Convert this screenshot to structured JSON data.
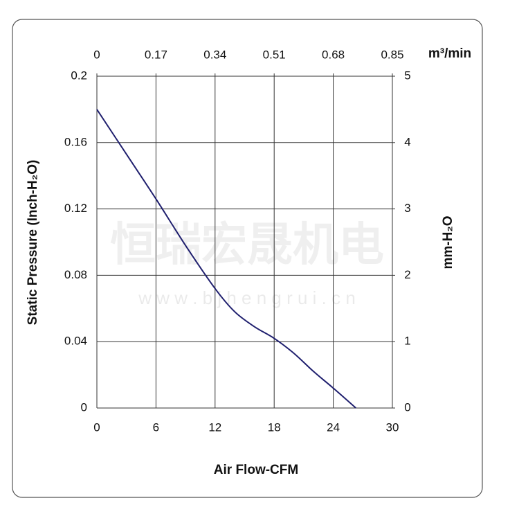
{
  "chart_data": {
    "type": "line",
    "x_label": "Air Flow-CFM",
    "y_label": "Static Pressure (Inch-H₂O)",
    "y2_label": "mm-H₂O",
    "x2_label": "m³/min",
    "watermark": "恒瑞宏晟机电",
    "watermark_url": "w w w . b j h e n g r u i . c n",
    "x": [
      0,
      3,
      6,
      9,
      12,
      14,
      16,
      18,
      20,
      22,
      24,
      26.3
    ],
    "series": [
      {
        "color": "#1f1f6e",
        "values": [
          0.18,
          0.153,
          0.126,
          0.098,
          0.072,
          0.058,
          0.049,
          0.042,
          0.033,
          0.022,
          0.012,
          0
        ]
      }
    ],
    "xlim": [
      0,
      30
    ],
    "xticks": [
      0,
      6,
      12,
      18,
      24,
      30
    ],
    "x2lim": [
      0,
      0.85
    ],
    "x2ticks": [
      0,
      0.17,
      0.34,
      0.51,
      0.68,
      0.85
    ],
    "ylim": [
      0,
      0.2
    ],
    "yticks": [
      0,
      0.04,
      0.08,
      0.12,
      0.16,
      0.2
    ],
    "y2lim": [
      0,
      5
    ],
    "y2ticks": [
      0,
      1,
      2,
      3,
      4,
      5
    ],
    "grid": true
  }
}
